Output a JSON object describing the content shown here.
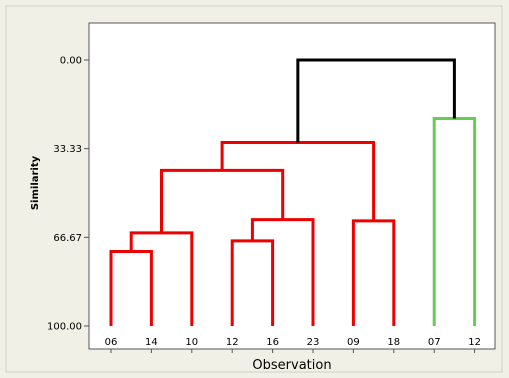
{
  "chart_data": {
    "type": "dendrogram",
    "title": "",
    "xlabel": "Observation",
    "ylabel": "Similarity",
    "ylim": [
      0,
      100
    ],
    "y_inverted": true,
    "y_ticks": [
      {
        "value": 0,
        "label": "0.00"
      },
      {
        "value": 33.33,
        "label": "33.33"
      },
      {
        "value": 66.67,
        "label": "66.67"
      },
      {
        "value": 100,
        "label": "100.00"
      }
    ],
    "leaves": [
      "06",
      "14",
      "10",
      "12",
      "16",
      "23",
      "09",
      "18",
      "07",
      "12"
    ],
    "grid": false,
    "colors": {
      "cluster_red": "#ee0000",
      "cluster_green": "#66cc55",
      "root": "#000000",
      "background": "#f0f0e6",
      "plot_bg": "#ffffff"
    },
    "merges": [
      {
        "id": "n1",
        "left": "L0",
        "right": "L1",
        "similarity": 72,
        "color": "#ee0000"
      },
      {
        "id": "n2",
        "left": "n1",
        "right": "L2",
        "similarity": 65,
        "color": "#ee0000"
      },
      {
        "id": "n3",
        "left": "L3",
        "right": "L4",
        "similarity": 68,
        "color": "#ee0000"
      },
      {
        "id": "n4",
        "left": "n3",
        "right": "L5",
        "similarity": 60,
        "color": "#ee0000"
      },
      {
        "id": "n5",
        "left": "n2",
        "right": "n4",
        "similarity": 41.5,
        "color": "#ee0000"
      },
      {
        "id": "n6",
        "left": "L6",
        "right": "L7",
        "similarity": 60.5,
        "color": "#ee0000"
      },
      {
        "id": "n7",
        "left": "n5",
        "right": "n6",
        "similarity": 31,
        "color": "#ee0000"
      },
      {
        "id": "n8",
        "left": "L8",
        "right": "L9",
        "similarity": 22,
        "color": "#66cc55"
      },
      {
        "id": "n9",
        "left": "n7",
        "right": "n8",
        "similarity": 0,
        "color": "#000000"
      }
    ]
  }
}
